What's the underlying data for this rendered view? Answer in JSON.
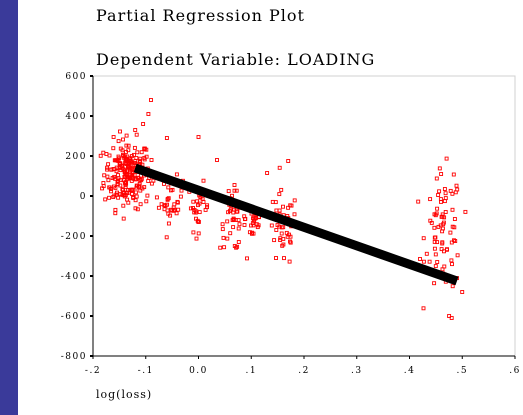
{
  "chart_data": {
    "type": "scatter",
    "title": "Partial Regression Plot",
    "subtitle": "Dependent Variable: LOADING",
    "xlabel": "log(loss)",
    "ylabel": "",
    "xlim": [
      -0.2,
      0.6
    ],
    "ylim": [
      -800,
      600
    ],
    "xticks": [
      "-.2",
      "-.1",
      "0.0",
      ".1",
      ".2",
      ".3",
      ".4",
      ".5",
      ".6"
    ],
    "xtick_values": [
      -0.2,
      -0.1,
      0.0,
      0.1,
      0.2,
      0.3,
      0.4,
      0.5,
      0.6
    ],
    "yticks": [
      "600",
      "400",
      "200",
      "0",
      "-200",
      "-400",
      "-600",
      "-800"
    ],
    "ytick_values": [
      600,
      400,
      200,
      0,
      -200,
      -400,
      -600,
      -800
    ],
    "grid": false,
    "marker_color": "#ff0000",
    "line_color": "#000000",
    "fit_line": {
      "x": [
        -0.12,
        0.49
      ],
      "y": [
        140,
        -425
      ]
    },
    "clusters": [
      {
        "cx": -0.135,
        "cy": 110,
        "sx": 0.022,
        "sy": 85,
        "n": 230
      },
      {
        "cx": -0.05,
        "cy": -20,
        "sx": 0.01,
        "sy": 55,
        "n": 35
      },
      {
        "cx": 0.0,
        "cy": -55,
        "sx": 0.01,
        "sy": 60,
        "n": 30
      },
      {
        "cx": 0.065,
        "cy": -120,
        "sx": 0.012,
        "sy": 75,
        "n": 45
      },
      {
        "cx": 0.105,
        "cy": -110,
        "sx": 0.008,
        "sy": 70,
        "n": 25
      },
      {
        "cx": 0.16,
        "cy": -170,
        "sx": 0.014,
        "sy": 95,
        "n": 45
      },
      {
        "cx": 0.465,
        "cy": -180,
        "sx": 0.017,
        "sy": 150,
        "n": 80
      }
    ],
    "outliers": {
      "x": [
        -0.09,
        -0.095,
        -0.105,
        -0.12,
        -0.06,
        0.0,
        0.035,
        0.13,
        0.17,
        0.46,
        0.475,
        0.48,
        0.5,
        0.44
      ],
      "y": [
        480,
        410,
        360,
        330,
        290,
        295,
        180,
        115,
        175,
        110,
        -600,
        -610,
        -480,
        -380
      ]
    }
  }
}
